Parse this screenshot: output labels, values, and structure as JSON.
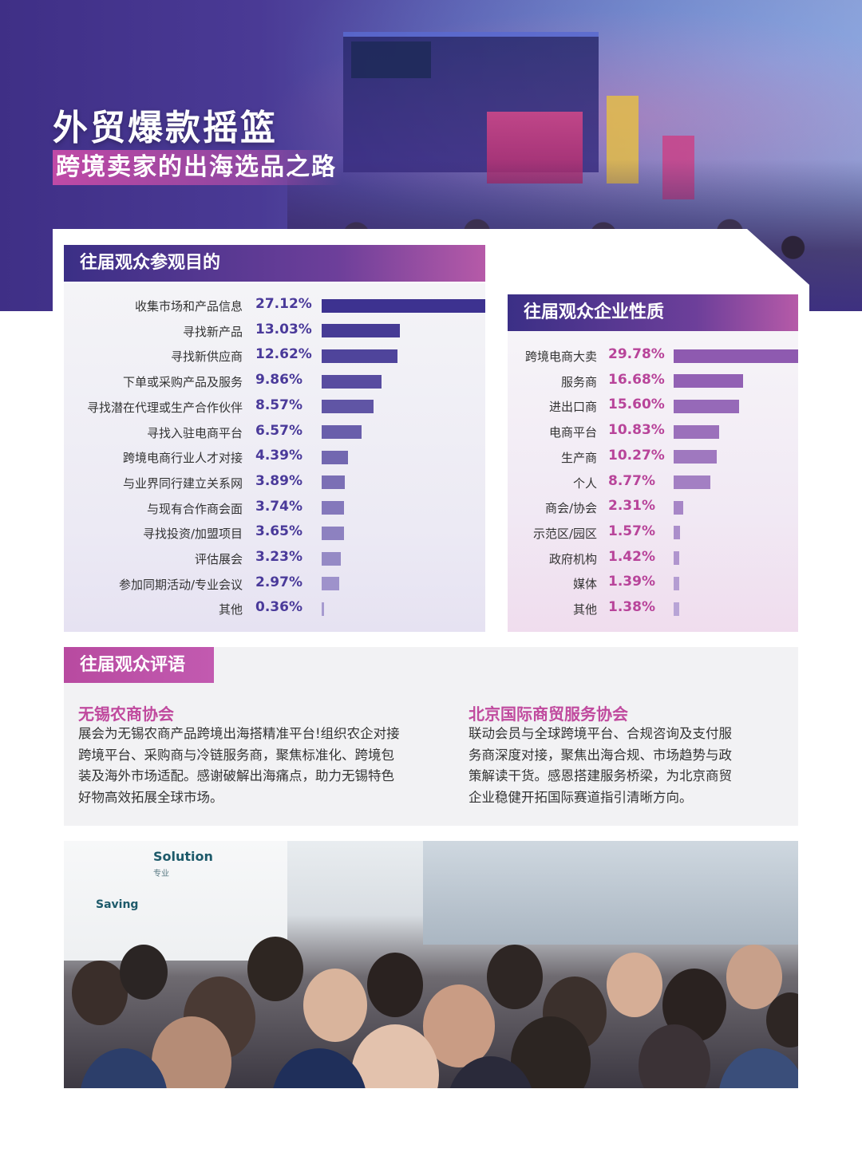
{
  "hero": {
    "title": "外贸爆款摇篮",
    "subtitle": "跨境卖家的出海选品之路"
  },
  "purpose": {
    "heading": "往届观众参观目的"
  },
  "nature": {
    "heading": "往届观众企业性质"
  },
  "comments": {
    "heading": "往届观众评语",
    "items": [
      {
        "name": "无锡农商协会",
        "lines": [
          "展会为无锡农商产品跨境出海搭精准平台!组织农企对接",
          "跨境平台、采购商与冷链服务商，聚焦标准化、跨境包",
          "装及海外市场适配。感谢破解出海痛点，助力无锡特色",
          "好物高效拓展全球市场。"
        ]
      },
      {
        "name": "北京国际商贸服务协会",
        "lines": [
          "联动会员与全球跨境平台、合规咨询及支付服",
          "务商深度对接，聚焦出海合规、市场趋势与政",
          "策解读干货。感恩搭建服务桥梁，为北京商贸",
          "企业稳健开拓国际赛道指引清晰方向。"
        ]
      }
    ]
  },
  "photo": {
    "sign_solution": "Solution",
    "sign_zhuanye": "专业",
    "sign_saving": "Saving"
  },
  "chart_data": [
    {
      "type": "bar",
      "orientation": "horizontal",
      "title": "往届观众参观目的",
      "categories": [
        "收集市场和产品信息",
        "寻找新产品",
        "寻找新供应商",
        "下单或采购产品及服务",
        "寻找潜在代理或生产合作伙伴",
        "寻找入驻电商平台",
        "跨境电商行业人才对接",
        "与业界同行建立关系网",
        "与现有合作商会面",
        "寻找投资/加盟项目",
        "评估展会",
        "参加同期活动/专业会议",
        "其他"
      ],
      "values": [
        27.12,
        13.03,
        12.62,
        9.86,
        8.57,
        6.57,
        4.39,
        3.89,
        3.74,
        3.65,
        3.23,
        2.97,
        0.36
      ],
      "value_labels": [
        "27.12%",
        "13.03%",
        "12.62%",
        "9.86%",
        "8.57%",
        "6.57%",
        "4.39%",
        "3.89%",
        "3.74%",
        "3.65%",
        "3.23%",
        "2.97%",
        "0.36%"
      ],
      "unit": "%",
      "colors": {
        "value_text": "#4a3a9a",
        "bar_dark": "#3d3290",
        "bar_light": "#a79bd0"
      }
    },
    {
      "type": "bar",
      "orientation": "horizontal",
      "title": "往届观众企业性质",
      "categories": [
        "跨境电商大卖",
        "服务商",
        "进出口商",
        "电商平台",
        "生产商",
        "个人",
        "商会/协会",
        "示范区/园区",
        "政府机构",
        "媒体",
        "其他"
      ],
      "values": [
        29.78,
        16.68,
        15.6,
        10.83,
        10.27,
        8.77,
        2.31,
        1.57,
        1.42,
        1.39,
        1.38
      ],
      "value_labels": [
        "29.78%",
        "16.68%",
        "15.60%",
        "10.83%",
        "10.27%",
        "8.77%",
        "2.31%",
        "1.57%",
        "1.42%",
        "1.39%",
        "1.38%"
      ],
      "unit": "%",
      "colors": {
        "value_text": "#b8449a",
        "bar_dark": "#8e5ab0",
        "bar_light": "#b8a4d6"
      }
    }
  ]
}
